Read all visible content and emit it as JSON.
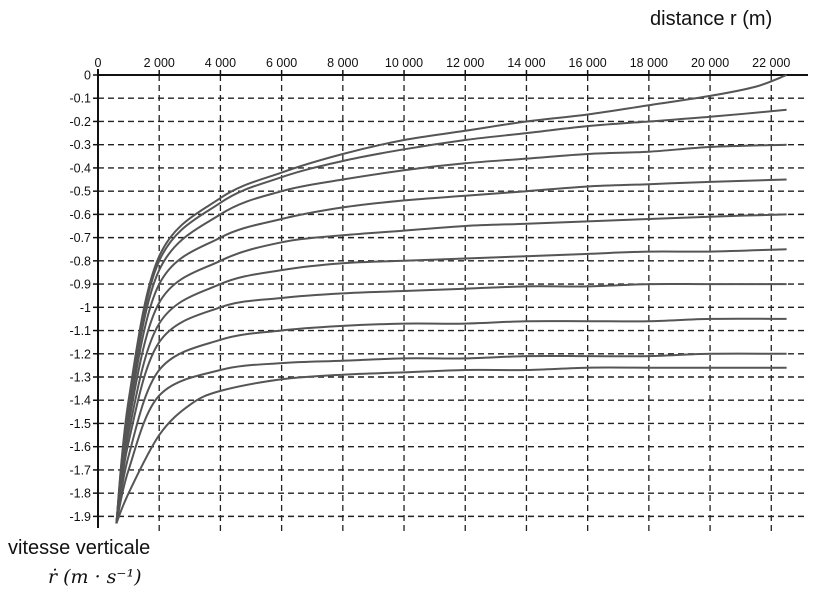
{
  "chart_data": {
    "type": "line",
    "xlabel": "distance r (m)",
    "ylabel": "vitesse verticale",
    "ylabel_unit": "ṙ (m · s⁻¹)",
    "x_axis_position": "top",
    "grid": true,
    "grid_style": "dashed",
    "line_color": "#555555",
    "grid_color": "#222222",
    "xlim": [
      0,
      23200
    ],
    "ylim": [
      -1.95,
      0
    ],
    "x_ticks": [
      0,
      2000,
      4000,
      6000,
      8000,
      10000,
      12000,
      14000,
      16000,
      18000,
      20000,
      22000
    ],
    "x_tick_labels": [
      "0",
      "2 000",
      "4 000",
      "6 000",
      "8 000",
      "10 000",
      "12 000",
      "14 000",
      "16 000",
      "18 000",
      "20 000",
      "22 000"
    ],
    "y_ticks": [
      0,
      -0.1,
      -0.2,
      -0.3,
      -0.4,
      -0.5,
      -0.6,
      -0.7,
      -0.8,
      -0.9,
      -1,
      -1.1,
      -1.2,
      -1.3,
      -1.4,
      -1.5,
      -1.6,
      -1.7,
      -1.8,
      -1.9
    ],
    "y_tick_labels": [
      "0",
      "-0.1",
      "-0.2",
      "-0.3",
      "-0.4",
      "-0.5",
      "-0.6",
      "-0.7",
      "-0.8",
      "-0.9",
      "-1",
      "-1.1",
      "-1.2",
      "-1.3",
      "-1.4",
      "-1.5",
      "-1.6",
      "-1.7",
      "-1.8",
      "-1.9"
    ],
    "series": [
      {
        "x": [
          600,
          1000,
          2000,
          4000,
          6000,
          8000,
          10000,
          12000,
          14000,
          16000,
          18000,
          20000,
          21500,
          22500
        ],
        "y": [
          -1.93,
          -1.4,
          -0.78,
          -0.53,
          -0.42,
          -0.34,
          -0.28,
          -0.24,
          -0.2,
          -0.17,
          -0.13,
          -0.09,
          -0.05,
          0
        ]
      },
      {
        "x": [
          600,
          1000,
          2000,
          4000,
          6000,
          8000,
          10000,
          12000,
          14000,
          16000,
          18000,
          20000,
          22500
        ],
        "y": [
          -1.93,
          -1.42,
          -0.8,
          -0.55,
          -0.44,
          -0.37,
          -0.32,
          -0.28,
          -0.25,
          -0.22,
          -0.2,
          -0.18,
          -0.15
        ]
      },
      {
        "x": [
          600,
          1000,
          2000,
          4000,
          6000,
          8000,
          10000,
          12000,
          14000,
          16000,
          18000,
          20000,
          22500
        ],
        "y": [
          -1.93,
          -1.44,
          -0.84,
          -0.6,
          -0.5,
          -0.45,
          -0.41,
          -0.38,
          -0.36,
          -0.34,
          -0.33,
          -0.31,
          -0.3
        ]
      },
      {
        "x": [
          600,
          1000,
          2000,
          4000,
          6000,
          8000,
          10000,
          12000,
          14000,
          16000,
          18000,
          20000,
          22500
        ],
        "y": [
          -1.93,
          -1.47,
          -0.9,
          -0.7,
          -0.62,
          -0.57,
          -0.54,
          -0.52,
          -0.5,
          -0.48,
          -0.47,
          -0.46,
          -0.45
        ]
      },
      {
        "x": [
          600,
          1000,
          2000,
          4000,
          6000,
          8000,
          10000,
          12000,
          14000,
          16000,
          18000,
          20000,
          22500
        ],
        "y": [
          -1.93,
          -1.5,
          -0.98,
          -0.8,
          -0.72,
          -0.69,
          -0.67,
          -0.65,
          -0.64,
          -0.63,
          -0.62,
          -0.61,
          -0.6
        ]
      },
      {
        "x": [
          600,
          1000,
          2000,
          4000,
          6000,
          8000,
          10000,
          12000,
          14000,
          16000,
          18000,
          20000,
          22500
        ],
        "y": [
          -1.93,
          -1.54,
          -1.07,
          -0.9,
          -0.84,
          -0.81,
          -0.8,
          -0.79,
          -0.78,
          -0.77,
          -0.76,
          -0.76,
          -0.75
        ]
      },
      {
        "x": [
          600,
          1000,
          2000,
          4000,
          6000,
          8000,
          10000,
          12000,
          14000,
          16000,
          18000,
          20000,
          22500
        ],
        "y": [
          -1.93,
          -1.58,
          -1.15,
          -1.0,
          -0.96,
          -0.94,
          -0.93,
          -0.92,
          -0.91,
          -0.91,
          -0.9,
          -0.9,
          -0.9
        ]
      },
      {
        "x": [
          600,
          1000,
          2000,
          4000,
          6000,
          8000,
          10000,
          12000,
          14000,
          16000,
          18000,
          20000,
          22500
        ],
        "y": [
          -1.93,
          -1.64,
          -1.27,
          -1.14,
          -1.1,
          -1.08,
          -1.07,
          -1.07,
          -1.06,
          -1.06,
          -1.06,
          -1.05,
          -1.05
        ]
      },
      {
        "x": [
          600,
          1000,
          2000,
          4000,
          6000,
          8000,
          10000,
          12000,
          14000,
          16000,
          18000,
          20000,
          22500
        ],
        "y": [
          -1.93,
          -1.7,
          -1.38,
          -1.27,
          -1.24,
          -1.23,
          -1.22,
          -1.22,
          -1.21,
          -1.21,
          -1.21,
          -1.2,
          -1.2
        ]
      },
      {
        "x": [
          600,
          1000,
          2000,
          3000,
          4000,
          6000,
          8000,
          10000,
          12000,
          14000,
          16000,
          18000,
          20000,
          22500
        ],
        "y": [
          -1.93,
          -1.8,
          -1.55,
          -1.42,
          -1.36,
          -1.31,
          -1.29,
          -1.28,
          -1.27,
          -1.27,
          -1.26,
          -1.26,
          -1.26,
          -1.26
        ]
      }
    ]
  }
}
